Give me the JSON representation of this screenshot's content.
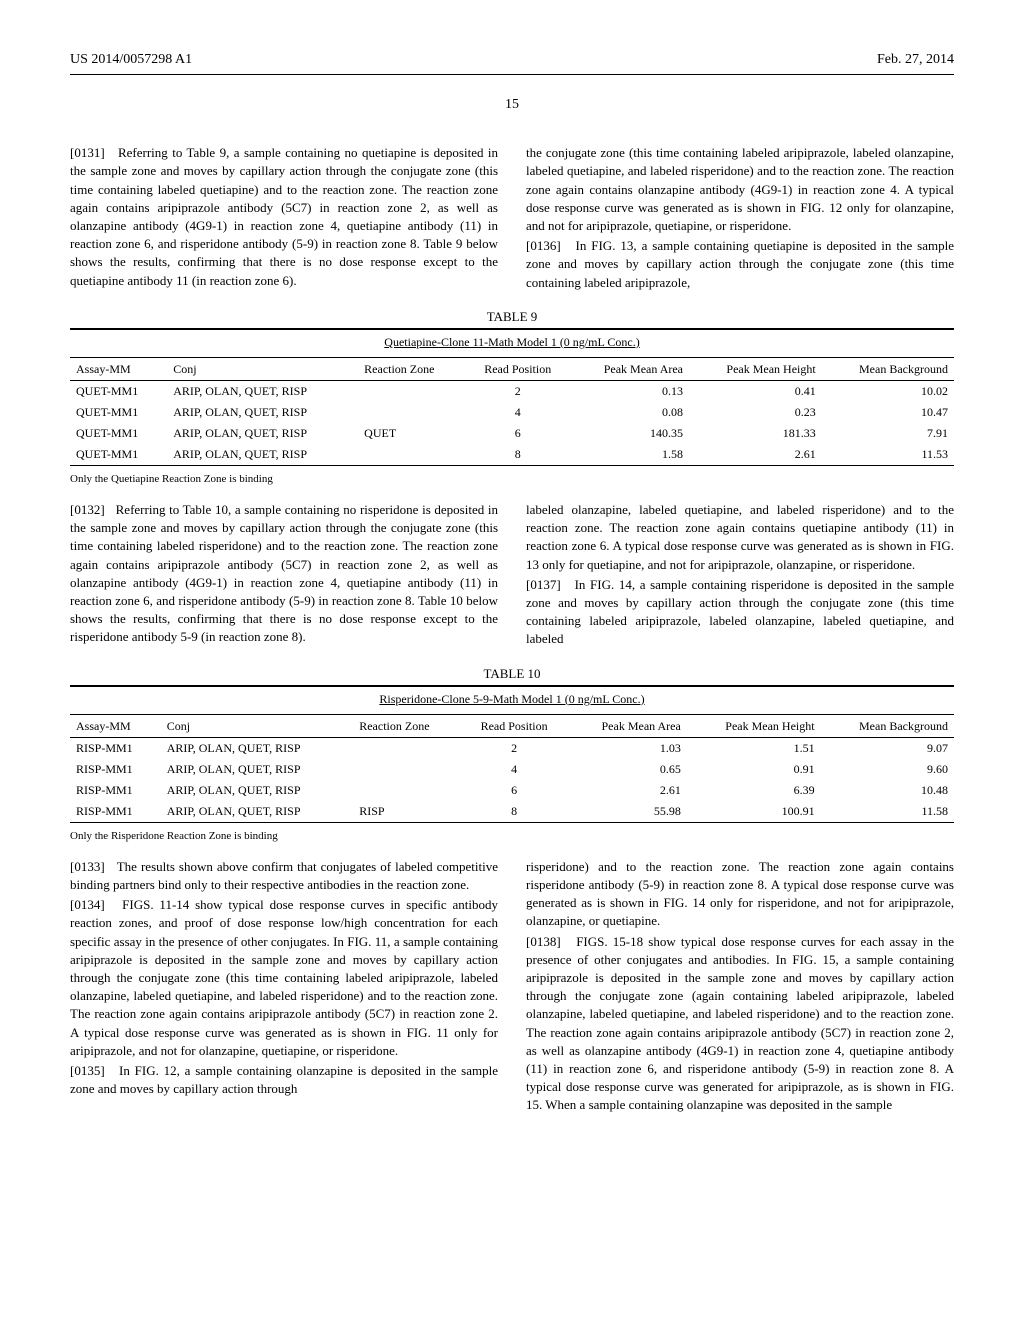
{
  "header": {
    "left": "US 2014/0057298 A1",
    "right": "Feb. 27, 2014"
  },
  "page_number": "15",
  "col1_block1": {
    "paragraphs": [
      {
        "num": "[0131]",
        "text": "Referring to Table 9, a sample containing no quetiapine is deposited in the sample zone and moves by capillary action through the conjugate zone (this time containing labeled quetiapine) and to the reaction zone. The reaction zone again contains aripiprazole antibody (5C7) in reaction zone 2, as well as olanzapine antibody (4G9-1) in reaction zone 4, quetiapine antibody (11) in reaction zone 6, and risperidone antibody (5-9) in reaction zone 8. Table 9 below shows the results, confirming that there is no dose response except to the quetiapine antibody 11 (in reaction zone 6)."
      }
    ]
  },
  "col2_block1": {
    "paragraphs": [
      {
        "text": "the conjugate zone (this time containing labeled aripiprazole, labeled olanzapine, labeled quetiapine, and labeled risperidone) and to the reaction zone. The reaction zone again contains olanzapine antibody (4G9-1) in reaction zone 4. A typical dose response curve was generated as is shown in FIG. 12 only for olanzapine, and not for aripiprazole, quetiapine, or risperidone."
      },
      {
        "num": "[0136]",
        "text": "In FIG. 13, a sample containing quetiapine is deposited in the sample zone and moves by capillary action through the conjugate zone (this time containing labeled aripiprazole,"
      }
    ]
  },
  "table9": {
    "label": "TABLE 9",
    "title": "Quetiapine-Clone 11-Math Model 1 (0 ng/mL Conc.)",
    "columns": [
      "Assay-MM",
      "Conj",
      "Reaction Zone",
      "Read Position",
      "Peak Mean Area",
      "Peak Mean Height",
      "Mean Background"
    ],
    "rows": [
      [
        "QUET-MM1",
        "ARIP, OLAN, QUET, RISP",
        "",
        "2",
        "0.13",
        "0.41",
        "10.02"
      ],
      [
        "QUET-MM1",
        "ARIP, OLAN, QUET, RISP",
        "",
        "4",
        "0.08",
        "0.23",
        "10.47"
      ],
      [
        "QUET-MM1",
        "ARIP, OLAN, QUET, RISP",
        "QUET",
        "6",
        "140.35",
        "181.33",
        "7.91"
      ],
      [
        "QUET-MM1",
        "ARIP, OLAN, QUET, RISP",
        "",
        "8",
        "1.58",
        "2.61",
        "11.53"
      ]
    ],
    "note": "Only the Quetiapine Reaction Zone is binding"
  },
  "col1_block2": {
    "paragraphs": [
      {
        "num": "[0132]",
        "text": "Referring to Table 10, a sample containing no risperidone is deposited in the sample zone and moves by capillary action through the conjugate zone (this time containing labeled risperidone) and to the reaction zone. The reaction zone again contains aripiprazole antibody (5C7) in reaction zone 2, as well as olanzapine antibody (4G9-1) in reaction zone 4, quetiapine antibody (11) in reaction zone 6, and risperidone antibody (5-9) in reaction zone 8. Table 10 below shows the results, confirming that there is no dose response except to the risperidone antibody 5-9 (in reaction zone 8)."
      }
    ]
  },
  "col2_block2": {
    "paragraphs": [
      {
        "text": "labeled olanzapine, labeled quetiapine, and labeled risperidone) and to the reaction zone. The reaction zone again contains quetiapine antibody (11) in reaction zone 6. A typical dose response curve was generated as is shown in FIG. 13 only for quetiapine, and not for aripiprazole, olanzapine, or risperidone."
      },
      {
        "num": "[0137]",
        "text": "In FIG. 14, a sample containing risperidone is deposited in the sample zone and moves by capillary action through the conjugate zone (this time containing labeled aripiprazole, labeled olanzapine, labeled quetiapine, and labeled"
      }
    ]
  },
  "table10": {
    "label": "TABLE 10",
    "title": "Risperidone-Clone 5-9-Math Model 1 (0 ng/mL Conc.)",
    "columns": [
      "Assay-MM",
      "Conj",
      "Reaction Zone",
      "Read Position",
      "Peak Mean Area",
      "Peak Mean Height",
      "Mean Background"
    ],
    "rows": [
      [
        "RISP-MM1",
        "ARIP, OLAN, QUET, RISP",
        "",
        "2",
        "1.03",
        "1.51",
        "9.07"
      ],
      [
        "RISP-MM1",
        "ARIP, OLAN, QUET, RISP",
        "",
        "4",
        "0.65",
        "0.91",
        "9.60"
      ],
      [
        "RISP-MM1",
        "ARIP, OLAN, QUET, RISP",
        "",
        "6",
        "2.61",
        "6.39",
        "10.48"
      ],
      [
        "RISP-MM1",
        "ARIP, OLAN, QUET, RISP",
        "RISP",
        "8",
        "55.98",
        "100.91",
        "11.58"
      ]
    ],
    "note": "Only the Risperidone Reaction Zone is binding"
  },
  "col1_block3": {
    "paragraphs": [
      {
        "num": "[0133]",
        "text": "The results shown above confirm that conjugates of labeled competitive binding partners bind only to their respective antibodies in the reaction zone."
      },
      {
        "num": "[0134]",
        "text": "FIGS. 11-14 show typical dose response curves in specific antibody reaction zones, and proof of dose response low/high concentration for each specific assay in the presence of other conjugates. In FIG. 11, a sample containing aripiprazole is deposited in the sample zone and moves by capillary action through the conjugate zone (this time containing labeled aripiprazole, labeled olanzapine, labeled quetiapine, and labeled risperidone) and to the reaction zone. The reaction zone again contains aripiprazole antibody (5C7) in reaction zone 2. A typical dose response curve was generated as is shown in FIG. 11 only for aripiprazole, and not for olanzapine, quetiapine, or risperidone."
      },
      {
        "num": "[0135]",
        "text": "In FIG. 12, a sample containing olanzapine is deposited in the sample zone and moves by capillary action through"
      }
    ]
  },
  "col2_block3": {
    "paragraphs": [
      {
        "text": "risperidone) and to the reaction zone. The reaction zone again contains risperidone antibody (5-9) in reaction zone 8. A typical dose response curve was generated as is shown in FIG. 14 only for risperidone, and not for aripiprazole, olanzapine, or quetiapine."
      },
      {
        "num": "[0138]",
        "text": "FIGS. 15-18 show typical dose response curves for each assay in the presence of other conjugates and antibodies. In FIG. 15, a sample containing aripiprazole is deposited in the sample zone and moves by capillary action through the conjugate zone (again containing labeled aripiprazole, labeled olanzapine, labeled quetiapine, and labeled risperidone) and to the reaction zone. The reaction zone again contains aripiprazole antibody (5C7) in reaction zone 2, as well as olanzapine antibody (4G9-1) in reaction zone 4, quetiapine antibody (11) in reaction zone 6, and risperidone antibody (5-9) in reaction zone 8. A typical dose response curve was generated for aripiprazole, as is shown in FIG. 15. When a sample containing olanzapine was deposited in the sample"
      }
    ]
  }
}
